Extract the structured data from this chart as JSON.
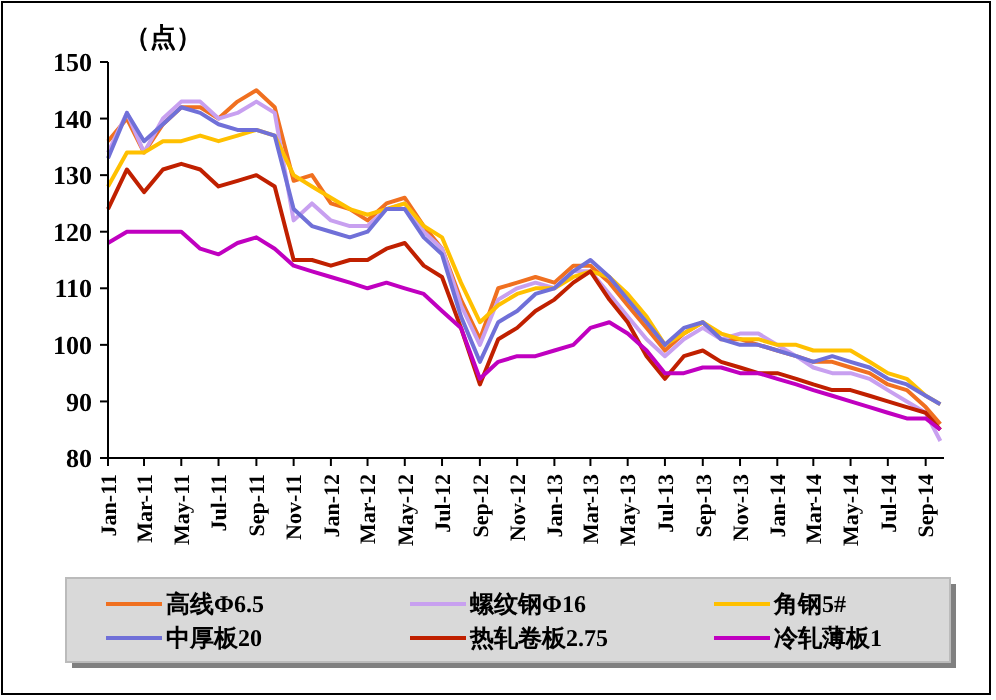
{
  "chart_data": {
    "type": "line",
    "ylabel": "（点）",
    "x": [
      "2011-01-01",
      "2011-02-01",
      "2011-03-01",
      "2011-04-01",
      "2011-05-01",
      "2011-06-01",
      "2011-07-01",
      "2011-08-01",
      "2011-09-01",
      "2011-10-01",
      "2011-11-01",
      "2011-12-01",
      "2012-01-01",
      "2012-02-01",
      "2012-03-01",
      "2012-04-01",
      "2012-05-01",
      "2012-06-01",
      "2012-07-01",
      "2012-08-01",
      "2012-09-01",
      "2012-10-01",
      "2012-11-01",
      "2012-12-01",
      "2013-01-01",
      "2013-02-01",
      "2013-03-01",
      "2013-04-01",
      "2013-05-01",
      "2013-06-01",
      "2013-07-01",
      "2013-08-01",
      "2013-09-01",
      "2013-10-01",
      "2013-11-01",
      "2013-12-01",
      "2014-01-01",
      "2014-02-01",
      "2014-03-01",
      "2014-04-01",
      "2014-05-01",
      "2014-06-01",
      "2014-07-01",
      "2014-08-01",
      "2014-09-01",
      "2014-09-25"
    ],
    "xlim": [
      "2011-01-01",
      "2014-10-01"
    ],
    "xticks": [
      {
        "value": "2011-01-01",
        "label": "Jan-11"
      },
      {
        "value": "2011-03-01",
        "label": "Mar-11"
      },
      {
        "value": "2011-05-01",
        "label": "May-11"
      },
      {
        "value": "2011-07-01",
        "label": "Jul-11"
      },
      {
        "value": "2011-09-01",
        "label": "Sep-11"
      },
      {
        "value": "2011-11-01",
        "label": "Nov-11"
      },
      {
        "value": "2012-01-01",
        "label": "Jan-12"
      },
      {
        "value": "2012-03-01",
        "label": "Mar-12"
      },
      {
        "value": "2012-05-01",
        "label": "May-12"
      },
      {
        "value": "2012-07-01",
        "label": "Jul-12"
      },
      {
        "value": "2012-09-01",
        "label": "Sep-12"
      },
      {
        "value": "2012-11-01",
        "label": "Nov-12"
      },
      {
        "value": "2013-01-01",
        "label": "Jan-13"
      },
      {
        "value": "2013-03-01",
        "label": "Mar-13"
      },
      {
        "value": "2013-05-01",
        "label": "May-13"
      },
      {
        "value": "2013-07-01",
        "label": "Jul-13"
      },
      {
        "value": "2013-09-01",
        "label": "Sep-13"
      },
      {
        "value": "2013-11-01",
        "label": "Nov-13"
      },
      {
        "value": "2014-01-01",
        "label": "Jan-14"
      },
      {
        "value": "2014-03-01",
        "label": "Mar-14"
      },
      {
        "value": "2014-05-01",
        "label": "May-14"
      },
      {
        "value": "2014-07-01",
        "label": "Jul-14"
      },
      {
        "value": "2014-09-01",
        "label": "Sep-14"
      }
    ],
    "ylim": [
      80,
      150
    ],
    "yticks": [
      80,
      90,
      100,
      110,
      120,
      130,
      140,
      150
    ],
    "grid": false,
    "legend": "bottom",
    "marker": "none",
    "line_style": "solid",
    "series": [
      {
        "name": "高线Φ6.5",
        "color": "#f07020",
        "values": [
          136,
          140,
          134,
          139,
          142,
          142,
          140,
          143,
          145,
          142,
          129,
          130,
          125,
          124,
          122,
          125,
          126,
          121,
          117,
          108,
          101,
          110,
          111,
          112,
          111,
          114,
          114,
          111,
          107,
          103,
          99,
          102,
          104,
          101,
          101,
          100,
          99,
          98,
          97,
          97,
          96,
          95,
          93,
          92,
          89,
          86
        ]
      },
      {
        "name": "螺纹钢Φ16",
        "color": "#c8a0f0",
        "values": [
          134,
          141,
          134,
          140,
          143,
          143,
          140,
          141,
          143,
          141,
          122,
          125,
          122,
          121,
          121,
          124,
          125,
          120,
          117,
          107,
          100,
          108,
          110,
          111,
          110,
          113,
          113,
          109,
          105,
          101,
          98,
          101,
          103,
          101,
          102,
          102,
          100,
          98,
          96,
          95,
          95,
          94,
          92,
          90,
          88,
          83
        ]
      },
      {
        "name": "角钢5#",
        "color": "#ffc000",
        "values": [
          128,
          134,
          134,
          136,
          136,
          137,
          136,
          137,
          138,
          137,
          130,
          128,
          126,
          124,
          123,
          124,
          125,
          121,
          119,
          111,
          104,
          107,
          109,
          110,
          110,
          112,
          113,
          112,
          109,
          105,
          100,
          102,
          104,
          102,
          101,
          101,
          100,
          100,
          99,
          99,
          99,
          97,
          95,
          94,
          91,
          89.5
        ]
      },
      {
        "name": "中厚板20",
        "color": "#7070d8",
        "values": [
          133,
          141,
          136,
          139,
          142,
          141,
          139,
          138,
          138,
          137,
          124,
          121,
          120,
          119,
          120,
          124,
          124,
          119,
          116,
          105,
          97,
          104,
          106,
          109,
          110,
          113,
          115,
          112,
          108,
          104,
          100,
          103,
          104,
          101,
          100,
          100,
          99,
          98,
          97,
          98,
          97,
          96,
          94,
          93,
          91,
          89.5
        ]
      },
      {
        "name": "热轧卷板2.75",
        "color": "#c02000",
        "values": [
          124,
          131,
          127,
          131,
          132,
          131,
          128,
          129,
          130,
          128,
          115,
          115,
          114,
          115,
          115,
          117,
          118,
          114,
          112,
          103,
          93,
          101,
          103,
          106,
          108,
          111,
          113,
          108,
          104,
          98,
          94,
          98,
          99,
          97,
          96,
          95,
          95,
          94,
          93,
          92,
          92,
          91,
          90,
          89,
          88,
          85
        ]
      },
      {
        "name": "冷轧薄板1",
        "color": "#c000c0",
        "values": [
          118,
          120,
          120,
          120,
          120,
          117,
          116,
          118,
          119,
          117,
          114,
          113,
          112,
          111,
          110,
          111,
          110,
          109,
          106,
          103,
          94,
          97,
          98,
          98,
          99,
          100,
          103,
          104,
          102,
          99,
          95,
          95,
          96,
          96,
          95,
          95,
          94,
          93,
          92,
          91,
          90,
          89,
          88,
          87,
          87,
          85
        ]
      }
    ]
  }
}
